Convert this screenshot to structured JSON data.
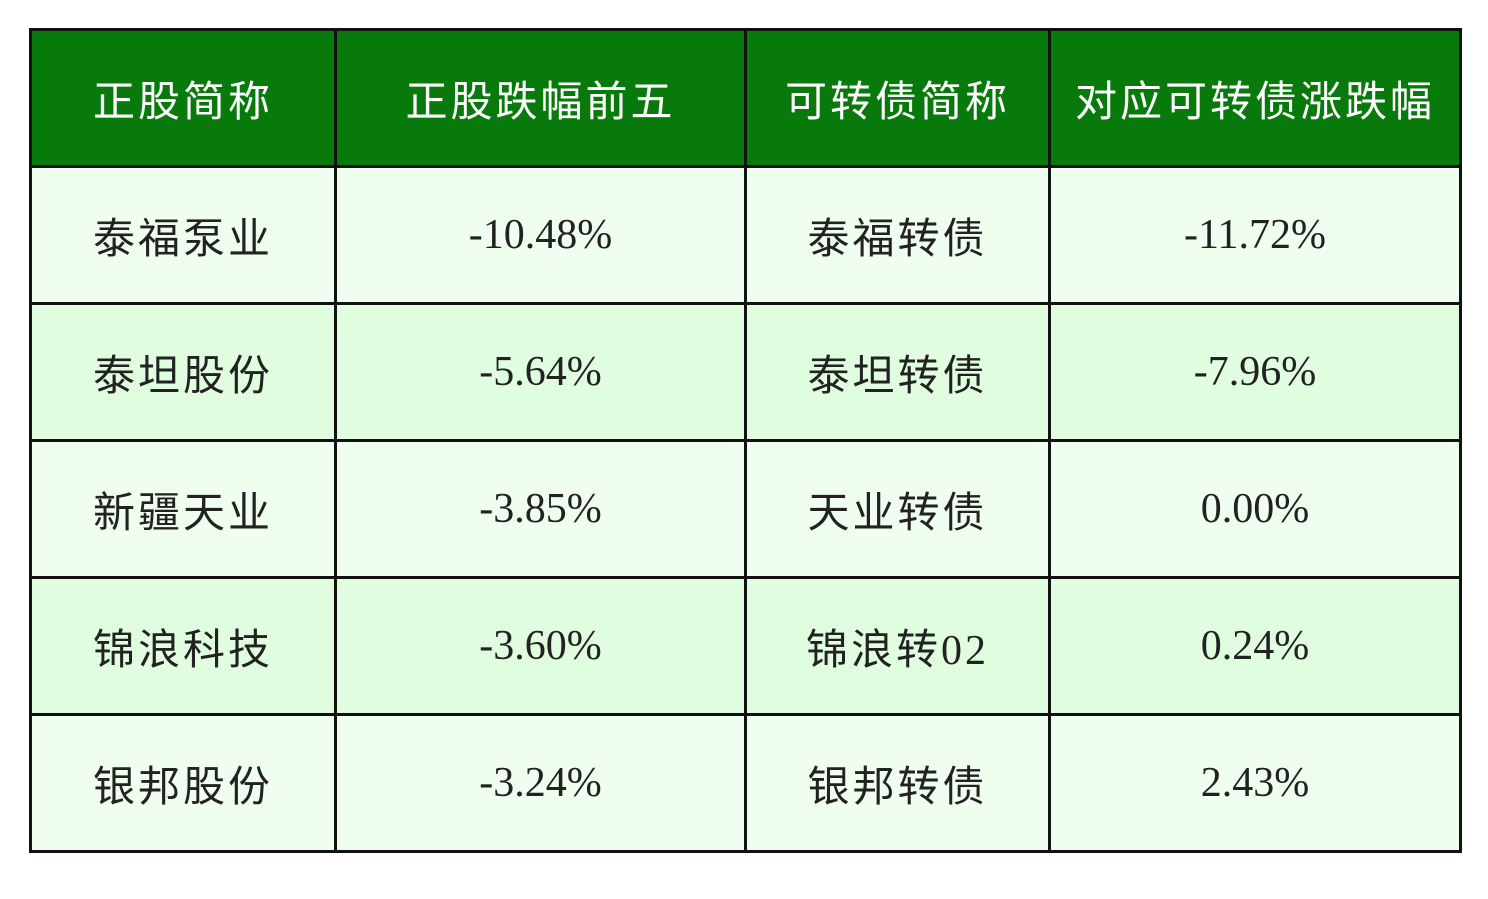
{
  "table": {
    "header": [
      "正股简称",
      "正股跌幅前五",
      "可转债简称",
      "对应可转债涨跌幅"
    ],
    "rows": [
      [
        "泰福泵业",
        "-10.48%",
        "泰福转债",
        "-11.72%"
      ],
      [
        "泰坦股份",
        "-5.64%",
        "泰坦转债",
        "-7.96%"
      ],
      [
        "新疆天业",
        "-3.85%",
        "天业转债",
        "0.00%"
      ],
      [
        "锦浪科技",
        "-3.60%",
        "锦浪转02",
        "0.24%"
      ],
      [
        "银邦股份",
        "-3.24%",
        "银邦转债",
        "2.43%"
      ]
    ]
  }
}
